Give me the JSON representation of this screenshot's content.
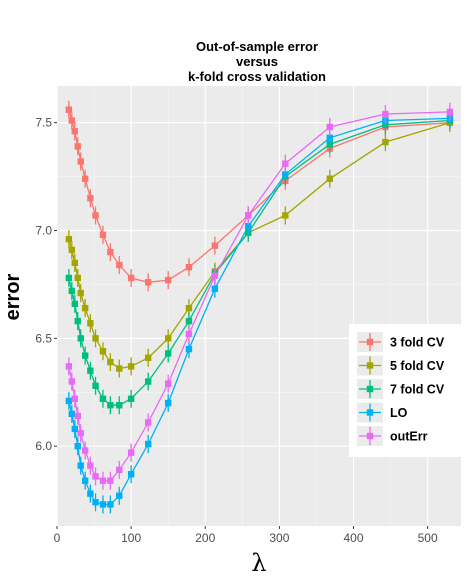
{
  "chart_data": {
    "type": "line",
    "title_lines": [
      "Out-of-sample error",
      "versus",
      "k-fold cross validation"
    ],
    "xlabel": "λ",
    "ylabel": "error",
    "xlim": [
      0,
      545
    ],
    "ylim": [
      5.63,
      7.67
    ],
    "x_ticks": [
      0,
      100,
      200,
      300,
      400,
      500
    ],
    "y_ticks": [
      6.0,
      6.5,
      7.0,
      7.5
    ],
    "y_tick_labels": [
      "6.0",
      "6.5",
      "7.0",
      "7.5"
    ],
    "grid": true,
    "legend_position": "right",
    "x": [
      16,
      20,
      24,
      28,
      32,
      38,
      45,
      52,
      62,
      72,
      84,
      100,
      123,
      150,
      178,
      213,
      258,
      308,
      368,
      443,
      530
    ],
    "series": [
      {
        "name": "3 fold CV",
        "color": "#F8766D",
        "values": [
          7.56,
          7.51,
          7.46,
          7.39,
          7.32,
          7.24,
          7.15,
          7.07,
          6.98,
          6.9,
          6.84,
          6.78,
          6.76,
          6.77,
          6.83,
          6.93,
          7.07,
          7.23,
          7.38,
          7.48,
          7.5
        ]
      },
      {
        "name": "5 fold CV",
        "color": "#A3A500",
        "values": [
          6.96,
          6.91,
          6.85,
          6.78,
          6.71,
          6.64,
          6.57,
          6.5,
          6.44,
          6.39,
          6.36,
          6.37,
          6.41,
          6.5,
          6.64,
          6.81,
          6.99,
          7.07,
          7.24,
          7.41,
          7.5
        ]
      },
      {
        "name": "7 fold CV",
        "color": "#00BF7D",
        "values": [
          6.78,
          6.72,
          6.66,
          6.58,
          6.5,
          6.42,
          6.35,
          6.28,
          6.22,
          6.19,
          6.19,
          6.22,
          6.3,
          6.43,
          6.58,
          6.8,
          6.99,
          7.25,
          7.4,
          7.49,
          7.51
        ]
      },
      {
        "name": "LO",
        "color": "#00B0F6",
        "values": [
          6.21,
          6.15,
          6.08,
          6.0,
          5.91,
          5.84,
          5.78,
          5.74,
          5.73,
          5.73,
          5.77,
          5.87,
          6.01,
          6.2,
          6.45,
          6.73,
          7.02,
          7.26,
          7.43,
          7.51,
          7.52
        ]
      },
      {
        "name": "outErr",
        "color": "#E76BF3",
        "values": [
          6.37,
          6.3,
          6.22,
          6.14,
          6.06,
          5.98,
          5.91,
          5.86,
          5.84,
          5.84,
          5.89,
          5.97,
          6.11,
          6.29,
          6.52,
          6.79,
          7.07,
          7.31,
          7.48,
          7.54,
          7.55
        ]
      }
    ]
  }
}
